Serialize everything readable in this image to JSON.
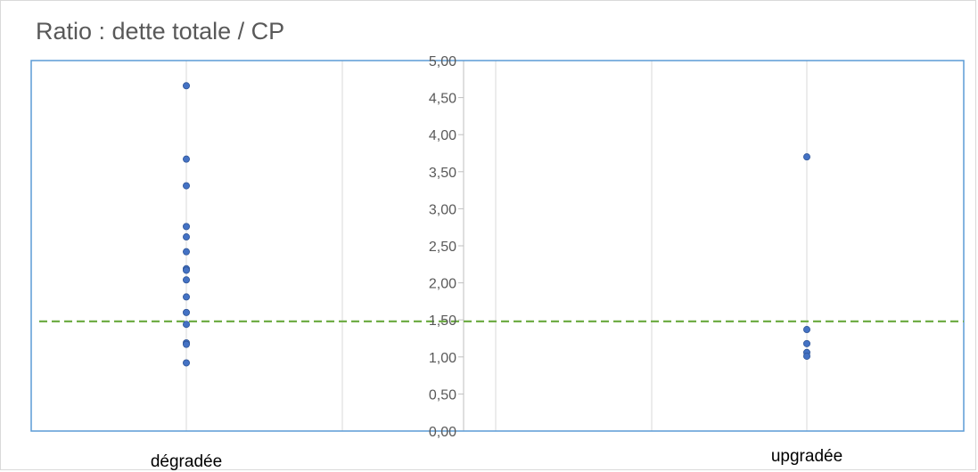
{
  "chart_data": {
    "type": "scatter",
    "title": "Ratio : dette totale / CP",
    "categories": [
      "dégradée",
      "upgradée"
    ],
    "ylim": [
      0,
      5
    ],
    "yticks": [
      "0,00",
      "0,50",
      "1,00",
      "1,50",
      "2,00",
      "2,50",
      "3,00",
      "3,50",
      "4,00",
      "4,50",
      "5,00"
    ],
    "grid": true,
    "reference_line": {
      "value": 1.48,
      "style": "dashed",
      "color": "#70ad47"
    },
    "series": [
      {
        "color": "#4472c4",
        "points": [
          {
            "x": "dégradée",
            "y": 4.66
          },
          {
            "x": "dégradée",
            "y": 3.67
          },
          {
            "x": "dégradée",
            "y": 3.31
          },
          {
            "x": "dégradée",
            "y": 2.76
          },
          {
            "x": "dégradée",
            "y": 2.62
          },
          {
            "x": "dégradée",
            "y": 2.42
          },
          {
            "x": "dégradée",
            "y": 2.19
          },
          {
            "x": "dégradée",
            "y": 2.17
          },
          {
            "x": "dégradée",
            "y": 2.04
          },
          {
            "x": "dégradée",
            "y": 1.81
          },
          {
            "x": "dégradée",
            "y": 1.6
          },
          {
            "x": "dégradée",
            "y": 1.44
          },
          {
            "x": "dégradée",
            "y": 1.19
          },
          {
            "x": "dégradée",
            "y": 1.17
          },
          {
            "x": "dégradée",
            "y": 0.92
          },
          {
            "x": "upgradée",
            "y": 3.7
          },
          {
            "x": "upgradée",
            "y": 1.37
          },
          {
            "x": "upgradée",
            "y": 1.18
          },
          {
            "x": "upgradée",
            "y": 1.06
          },
          {
            "x": "upgradée",
            "y": 1.01
          }
        ]
      }
    ]
  }
}
